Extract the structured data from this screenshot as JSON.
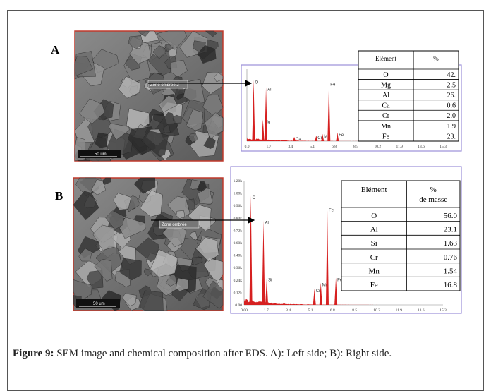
{
  "panels": [
    {
      "label": "A",
      "zone_label": "Zone ombrée 2",
      "scale": "50 um",
      "table": {
        "header": [
          "Elément",
          "%"
        ],
        "rows": [
          [
            "O",
            "42."
          ],
          [
            "Mg",
            "2.5"
          ],
          [
            "Al",
            "26."
          ],
          [
            "Ca",
            "0.6"
          ],
          [
            "Cr",
            "2.0"
          ],
          [
            "Mn",
            "1.9"
          ],
          [
            "Fe",
            "23."
          ]
        ]
      },
      "spectrum": {
        "xticks": [
          "0.0",
          "1.7",
          "3.4",
          "5.1",
          "6.8",
          "8.5",
          "10.2",
          "11.9",
          "13.6",
          "15.3"
        ],
        "yticks": [],
        "peak_labels": [
          "O",
          "Mg",
          "Al",
          "Ca",
          "Cr",
          "Mn",
          "Fe",
          "Fe"
        ]
      }
    },
    {
      "label": "B",
      "zone_label": "Zone ombrée",
      "scale": "50 um",
      "table": {
        "header": [
          "Elément",
          "%",
          "de masse"
        ],
        "rows": [
          [
            "O",
            "56.0"
          ],
          [
            "Al",
            "23.1"
          ],
          [
            "Si",
            "1.63"
          ],
          [
            "Cr",
            "0.76"
          ],
          [
            "Mn",
            "1.54"
          ],
          [
            "Fe",
            "16.8"
          ]
        ]
      },
      "spectrum": {
        "xticks": [
          "0.00",
          "1.7",
          "3.4",
          "5.1",
          "6.8",
          "8.5",
          "10.2",
          "11.9",
          "13.6",
          "15.3"
        ],
        "yticks": [
          "0.00",
          "0.12k",
          "0.24k",
          "0.36k",
          "0.48k",
          "0.60k",
          "0.72k",
          "0.84k",
          "0.96k",
          "1.08k",
          "1.20k"
        ],
        "peak_labels": [
          "O",
          "Al",
          "Si",
          "Cr",
          "Mn",
          "Fe",
          "Fe"
        ]
      }
    }
  ],
  "caption": {
    "label": "Figure 9:",
    "text": "SEM image and chemical composition after EDS. A): Left side; B): Right side."
  }
}
